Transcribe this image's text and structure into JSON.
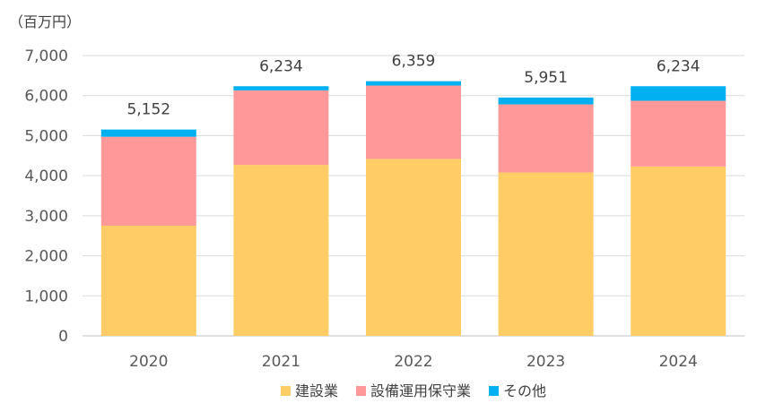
{
  "chart_data": {
    "type": "bar",
    "stacked": true,
    "unit_label": "（百万円）",
    "categories": [
      "2020",
      "2021",
      "2022",
      "2023",
      "2024"
    ],
    "series": [
      {
        "name": "建設業",
        "color": "#FFCC66",
        "values": [
          2750,
          4270,
          4420,
          4080,
          4230
        ]
      },
      {
        "name": "設備運用保守業",
        "color": "#FF9999",
        "values": [
          2222,
          1860,
          1830,
          1700,
          1640
        ]
      },
      {
        "name": "その他",
        "color": "#00B0F0",
        "values": [
          180,
          104,
          109,
          171,
          364
        ]
      }
    ],
    "totals": [
      "5,152",
      "6,234",
      "6,359",
      "5,951",
      "6,234"
    ],
    "y_ticks": [
      "0",
      "1,000",
      "2,000",
      "3,000",
      "4,000",
      "5,000",
      "6,000",
      "7,000"
    ],
    "ylim": [
      0,
      7000
    ],
    "grid": true,
    "legend_position": "bottom"
  }
}
